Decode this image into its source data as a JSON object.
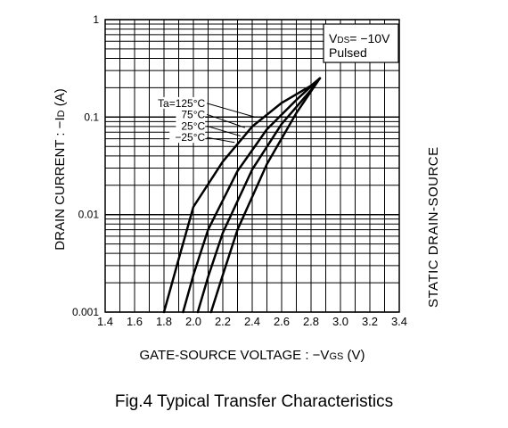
{
  "chart_data": {
    "type": "line",
    "title": "Fig.4  Typical Transfer Characteristics",
    "xlabel": "GATE-SOURCE VOLTAGE : −V",
    "xlabel_sub": "GS",
    "xlabel_unit": " (V)",
    "ylabel": "DRAIN CURRENT : −I",
    "ylabel_sub": "D",
    "ylabel_unit": " (A)",
    "xlim": [
      1.4,
      3.4
    ],
    "ylim": [
      0.001,
      1
    ],
    "yscale": "log",
    "grid": true,
    "x_ticks": [
      "1.4",
      "1.6",
      "1.8",
      "2.0",
      "2.2",
      "2.4",
      "2.6",
      "2.8",
      "3.0",
      "3.2",
      "3.4"
    ],
    "y_ticks": [
      "0.001",
      "0.01",
      "0.1",
      "1"
    ],
    "conditions": {
      "line1_prefix": "V",
      "line1_sub": "DS",
      "line1_suffix": "= −10V",
      "line2": "Pulsed"
    },
    "series": [
      {
        "name": "Ta=125°C",
        "x": [
          1.8,
          1.9,
          2.0,
          2.2,
          2.4,
          2.6,
          2.8,
          2.86
        ],
        "y": [
          0.001,
          0.0035,
          0.012,
          0.035,
          0.08,
          0.14,
          0.21,
          0.25
        ]
      },
      {
        "name": "75°C",
        "x": [
          1.93,
          2.0,
          2.1,
          2.3,
          2.5,
          2.7,
          2.86
        ],
        "y": [
          0.001,
          0.0024,
          0.007,
          0.028,
          0.075,
          0.15,
          0.25
        ]
      },
      {
        "name": "25°C",
        "x": [
          2.03,
          2.1,
          2.2,
          2.4,
          2.6,
          2.8,
          2.86
        ],
        "y": [
          0.001,
          0.0023,
          0.0065,
          0.029,
          0.085,
          0.19,
          0.25
        ]
      },
      {
        "name": "−25°C",
        "x": [
          2.12,
          2.2,
          2.3,
          2.5,
          2.7,
          2.86
        ],
        "y": [
          0.001,
          0.0024,
          0.007,
          0.033,
          0.11,
          0.25
        ]
      }
    ]
  },
  "truncated_label": "STATIC DRAIN-SOURCE"
}
